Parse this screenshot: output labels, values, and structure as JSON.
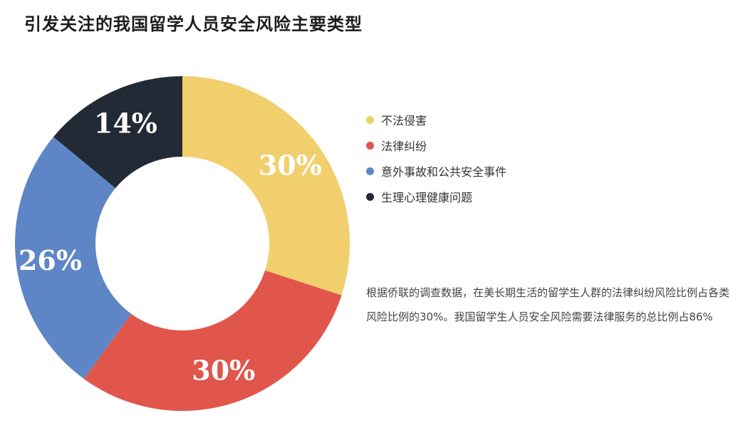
{
  "page": {
    "title": "引发关注的我国留学人员安全风险主要类型"
  },
  "chart_data": {
    "type": "pie",
    "title": "引发关注的我国留学人员安全风险主要类型",
    "categories": [
      "不法侵害",
      "法律纠纷",
      "意外事故和公共安全事件",
      "生理心理健康问题"
    ],
    "values": [
      30,
      30,
      26,
      14
    ],
    "labels": [
      "30%",
      "30%",
      "26%",
      "14%"
    ],
    "colors": [
      "#F2CF6D",
      "#E0564B",
      "#5E86C6",
      "#222B35"
    ],
    "donut": true,
    "legend_position": "right"
  },
  "legend": {
    "items": [
      {
        "label": "不法侵害",
        "color": "#F2CF6D"
      },
      {
        "label": "法律纠纷",
        "color": "#E0564B"
      },
      {
        "label": "意外事故和公共安全事件",
        "color": "#5E86C6"
      },
      {
        "label": "生理心理健康问题",
        "color": "#222B35"
      }
    ]
  },
  "note": {
    "text": "根据侨联的调查数据，在美长期生活的留学生人群的法律纠纷风险比例占各类风险比例的30%。我国留学生人员安全风险需要法律服务的总比例占86%"
  }
}
